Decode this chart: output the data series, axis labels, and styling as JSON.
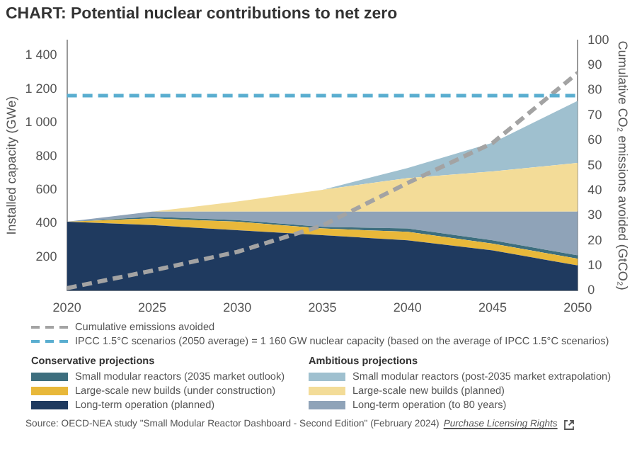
{
  "chart_data": {
    "type": "area",
    "title": "CHART: Potential nuclear contributions to net zero",
    "xlabel": null,
    "ylabel": "Installed capacity (GWe)",
    "y2label": "Cumulative CO₂ emissions avoided (GtCO₂)",
    "x": [
      2020,
      2025,
      2030,
      2035,
      2040,
      2045,
      2050
    ],
    "stacked": true,
    "series": [
      {
        "name": "Long-term operation (planned)",
        "color": "#1f3a5f",
        "values": [
          410,
          390,
          360,
          330,
          300,
          240,
          150
        ]
      },
      {
        "name": "Large-scale new builds (under construction)",
        "color": "#e8b83a",
        "values": [
          0,
          40,
          50,
          40,
          50,
          40,
          40
        ]
      },
      {
        "name": "Small modular reactors (2035 market outlook)",
        "color": "#3d6e7e",
        "values": [
          0,
          10,
          10,
          10,
          20,
          20,
          20
        ]
      },
      {
        "name": "Long-term operation (to 80 years)",
        "color": "#8fa3b8",
        "values": [
          0,
          30,
          50,
          90,
          100,
          170,
          260
        ]
      },
      {
        "name": "Large-scale new builds (planned)",
        "color": "#f3dc98",
        "values": [
          0,
          0,
          60,
          130,
          200,
          240,
          290
        ]
      },
      {
        "name": "Small modular reactors (post-2035 market extrapolation)",
        "color": "#9fc0cf",
        "values": [
          0,
          0,
          0,
          0,
          60,
          170,
          370
        ]
      },
      {
        "name": "Cumulative emissions avoided",
        "type": "line",
        "axis": "y2",
        "line_style": "dashed",
        "color": "#a3a3a3",
        "values": [
          1,
          8,
          15.5,
          26,
          43,
          59,
          87
        ]
      }
    ],
    "ref_lines": [
      {
        "axis": "y",
        "value": 1160,
        "label": "IPCC 1.5°C scenarios (2050 average) = 1 160 GW nuclear capacity (based on the average of IPCC 1.5°C scenarios)",
        "color": "#5aaed0",
        "line_style": "dashed"
      }
    ],
    "xlim": [
      2020,
      2050
    ],
    "xticks": [
      2020,
      2025,
      2030,
      2035,
      2040,
      2045,
      2050
    ],
    "ylim": [
      0,
      1490
    ],
    "yticks": [
      {
        "value": 200,
        "label": "200"
      },
      {
        "value": 400,
        "label": "400"
      },
      {
        "value": 600,
        "label": "600"
      },
      {
        "value": 800,
        "label": "800"
      },
      {
        "value": 1000,
        "label": "1 000"
      },
      {
        "value": 1200,
        "label": "1 200"
      },
      {
        "value": 1400,
        "label": "1 400"
      }
    ],
    "y2lim": [
      0,
      100
    ],
    "y2ticks": [
      0,
      10,
      20,
      30,
      40,
      50,
      60,
      70,
      80,
      90,
      100
    ],
    "grid": false,
    "legend": "bottom",
    "annotations": [
      "Conservative projections",
      "Ambitious projections",
      "Source: OECD-NEA study \"Small Modular Reactor Dashboard - Second Edition\" (February 2024)",
      "Purchase Licensing Rights"
    ]
  }
}
